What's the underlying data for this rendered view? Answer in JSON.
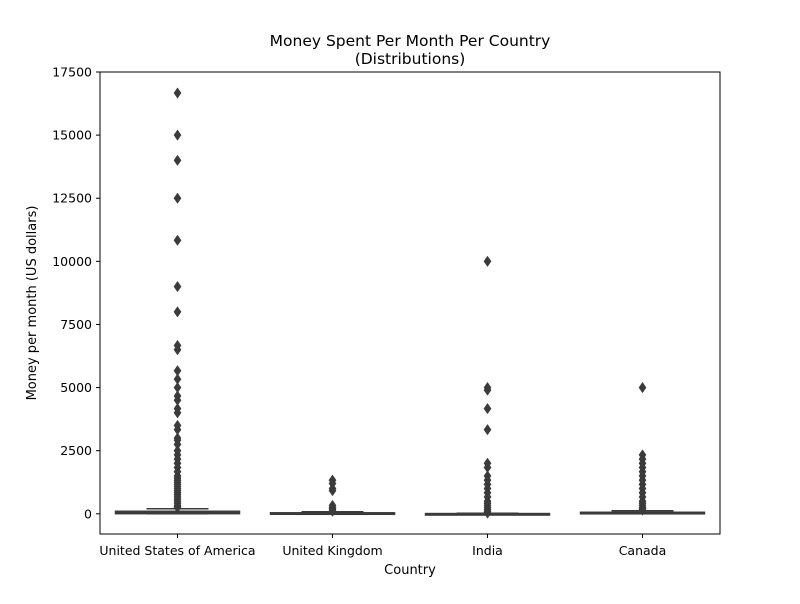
{
  "chart_data": {
    "type": "box",
    "title": "Money Spent Per Month Per Country",
    "subtitle": "(Distributions)",
    "xlabel": "Country",
    "ylabel": "Money per month (US dollars)",
    "ylim": [
      -800,
      17500
    ],
    "yticks": [
      0,
      2500,
      5000,
      7500,
      10000,
      12500,
      15000,
      17500
    ],
    "categories": [
      "United States of America",
      "United Kingdom",
      "India",
      "Canada"
    ],
    "colors": {
      "box": "#3b3b3b",
      "outlier": "#3b3b3b",
      "axis": "#000000"
    },
    "boxes": [
      {
        "category": "United States of America",
        "min": 0,
        "q1": 5,
        "median": 20,
        "q3": 100,
        "max": 200,
        "outliers": [
          16667,
          15000,
          14000,
          12500,
          10833,
          9000,
          8000,
          6667,
          6500,
          5667,
          5333,
          5000,
          4667,
          4500,
          4167,
          4000,
          3500,
          3333,
          3000,
          2917,
          2750,
          2500,
          2333,
          2167,
          2000,
          1833,
          1667,
          1500,
          1417,
          1333,
          1250,
          1167,
          1083,
          1000,
          917,
          833,
          750,
          667,
          583,
          500,
          417,
          333,
          300,
          250
        ]
      },
      {
        "category": "United Kingdom",
        "min": 0,
        "q1": 0,
        "median": 10,
        "q3": 40,
        "max": 80,
        "outliers": [
          1333,
          1200,
          1000,
          917,
          333,
          250,
          200,
          150,
          100
        ]
      },
      {
        "category": "India",
        "min": 0,
        "q1": 0,
        "median": 0,
        "q3": 10,
        "max": 20,
        "outliers": [
          10000,
          5000,
          4900,
          4167,
          3333,
          2000,
          1833,
          1500,
          1333,
          1167,
          1000,
          833,
          667,
          500,
          417,
          333,
          250,
          167,
          100,
          50,
          30
        ]
      },
      {
        "category": "Canada",
        "min": 0,
        "q1": 0,
        "median": 15,
        "q3": 60,
        "max": 120,
        "outliers": [
          5000,
          2333,
          2167,
          2000,
          1833,
          1667,
          1500,
          1333,
          1167,
          1000,
          833,
          667,
          500,
          417,
          333,
          250,
          200,
          150
        ]
      }
    ]
  }
}
